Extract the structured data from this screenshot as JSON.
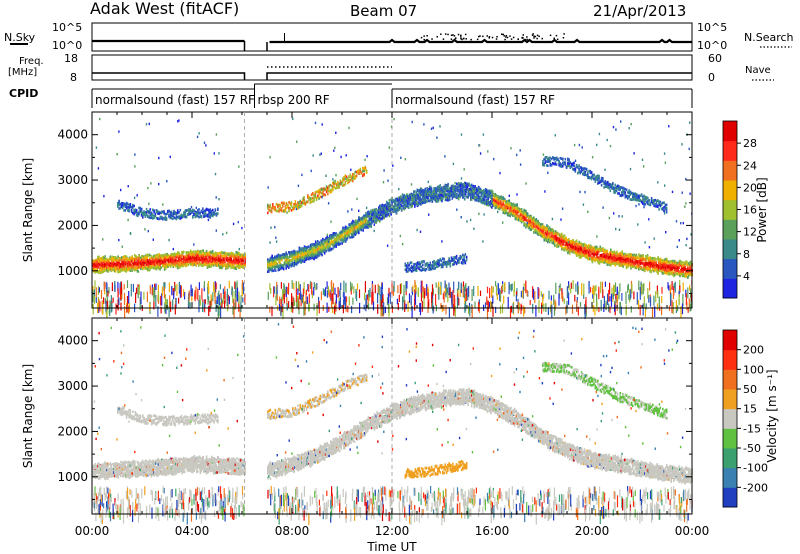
{
  "header": {
    "station": "Adak West (fitACF)",
    "beam": "Beam 07",
    "date": "21/Apr/2013"
  },
  "top_panel": {
    "left_label": "N.Sky",
    "left_ticks": [
      "10^5",
      "10^0"
    ],
    "right_ticks": [
      "10^5",
      "10^0"
    ],
    "right_label": "N.Search"
  },
  "freq_panel": {
    "left_label_1": "Freq.",
    "left_label_2": "[MHz]",
    "left_ticks": [
      "18",
      "8"
    ],
    "right_ticks": [
      "60",
      "0"
    ],
    "right_label": "Nave"
  },
  "cpid_panel": {
    "label": "CPID",
    "modes": [
      {
        "text": "normalsound (fast) 157 RF",
        "start": 0,
        "end": 6.5
      },
      {
        "text": "rbsp 200 RF",
        "start": 6.5,
        "end": 12.0
      },
      {
        "text": "normalsound (fast) 157 RF",
        "start": 12.0,
        "end": 24.0
      }
    ]
  },
  "power_panel": {
    "ylabel": "Slant Range [km]",
    "yticks": [
      "4000",
      "3000",
      "2000",
      "1000"
    ],
    "colorbar_label": "Power [dB]",
    "colorbar_ticks": [
      "28",
      "24",
      "20",
      "16",
      "12",
      "8",
      "4"
    ],
    "colors": [
      "#1f24e0",
      "#2a56c0",
      "#3a8a8a",
      "#5aa05a",
      "#a0c030",
      "#f0b000",
      "#f07020",
      "#ff2a1a",
      "#e00000"
    ]
  },
  "velocity_panel": {
    "ylabel": "Slant Range [km]",
    "yticks": [
      "4000",
      "3000",
      "2000",
      "1000"
    ],
    "colorbar_label": "Velocity [m s⁻¹]",
    "colorbar_ticks": [
      "200",
      "100",
      "50",
      "15",
      "-15",
      "-50",
      "-100",
      "-200"
    ],
    "colors": [
      "#2040c0",
      "#3a80b0",
      "#3aa070",
      "#60c040",
      "#c8c8c0",
      "#f0a020",
      "#f07020",
      "#ff3010",
      "#e00000"
    ]
  },
  "x_axis": {
    "ticks": [
      "00:00",
      "04:00",
      "08:00",
      "12:00",
      "16:00",
      "20:00",
      "00:00"
    ],
    "label": "Time UT"
  },
  "chart_data": {
    "type": "heatmap",
    "title": "Adak West (fitACF) Beam 07 21/Apr/2013",
    "xlabel": "Time UT",
    "ylabel": "Slant Range [km]",
    "xlim": [
      0,
      24
    ],
    "ylim": [
      180,
      4500
    ],
    "data_gap_hours": [
      6.1,
      7.0
    ],
    "scatter_bands": [
      {
        "name": "main_echo",
        "points": [
          [
            0,
            1150
          ],
          [
            2,
            1200
          ],
          [
            4,
            1300
          ],
          [
            6,
            1250
          ],
          [
            7,
            1150
          ],
          [
            8,
            1300
          ],
          [
            9,
            1500
          ],
          [
            10,
            1800
          ],
          [
            11,
            2150
          ],
          [
            12,
            2450
          ],
          [
            13,
            2650
          ],
          [
            14,
            2750
          ],
          [
            15,
            2800
          ],
          [
            16,
            2600
          ],
          [
            17,
            2300
          ],
          [
            18,
            1900
          ],
          [
            19,
            1600
          ],
          [
            20,
            1400
          ],
          [
            21,
            1300
          ],
          [
            22,
            1200
          ],
          [
            23,
            1100
          ],
          [
            24,
            1050
          ]
        ]
      },
      {
        "name": "upper_echo_morning",
        "points": [
          [
            1,
            2500
          ],
          [
            2,
            2300
          ],
          [
            3,
            2250
          ],
          [
            4,
            2300
          ],
          [
            5,
            2300
          ]
        ]
      },
      {
        "name": "upper_echo_midday",
        "points": [
          [
            7,
            2400
          ],
          [
            8,
            2450
          ],
          [
            9,
            2700
          ],
          [
            10,
            3000
          ],
          [
            11,
            3250
          ]
        ]
      },
      {
        "name": "upper_echo_evening",
        "points": [
          [
            18,
            3450
          ],
          [
            19,
            3400
          ],
          [
            20,
            3100
          ],
          [
            21,
            2800
          ],
          [
            22,
            2600
          ],
          [
            23,
            2400
          ]
        ]
      },
      {
        "name": "patch_afternoon",
        "points": [
          [
            12.5,
            1100
          ],
          [
            13.5,
            1150
          ],
          [
            14.5,
            1250
          ],
          [
            15,
            1300
          ]
        ]
      }
    ],
    "power_scale": {
      "min": 0,
      "max": 30,
      "unit": "dB"
    },
    "velocity_scale": {
      "min": -250,
      "max": 250,
      "unit": "m/s"
    }
  }
}
